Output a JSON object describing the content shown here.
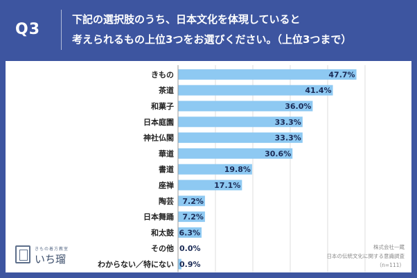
{
  "header": {
    "question_label": "Q3",
    "question_line1": "下記の選択肢のうち、日本文化を体現していると",
    "question_line2": "考えられるもの上位3つをお選びください。（上位3つまで）"
  },
  "chart_data": {
    "type": "bar",
    "orientation": "horizontal",
    "categories": [
      "きもの",
      "茶道",
      "和菓子",
      "日本庭園",
      "神社仏閣",
      "華道",
      "書道",
      "座禅",
      "陶芸",
      "日本舞踊",
      "和太鼓",
      "その他",
      "わからない／特にない"
    ],
    "values": [
      47.7,
      41.4,
      36.0,
      33.3,
      33.3,
      30.6,
      19.8,
      17.1,
      7.2,
      7.2,
      6.3,
      0.0,
      0.9
    ],
    "value_labels": [
      "47.7%",
      "41.4%",
      "36.0%",
      "33.3%",
      "33.3%",
      "30.6%",
      "19.8%",
      "17.1%",
      "7.2%",
      "7.2%",
      "6.3%",
      "0.0%",
      "0.9%"
    ],
    "xlim": [
      0,
      50
    ],
    "grid": true,
    "bar_color": "#8ec9f2",
    "unit": "%"
  },
  "logo": {
    "small_text": "きもの着方教室",
    "main_text": "いち瑠"
  },
  "source": {
    "company": "株式会社一蔵",
    "survey": "日本の伝統文化に関する意識調査",
    "sample": "（n=111）"
  }
}
